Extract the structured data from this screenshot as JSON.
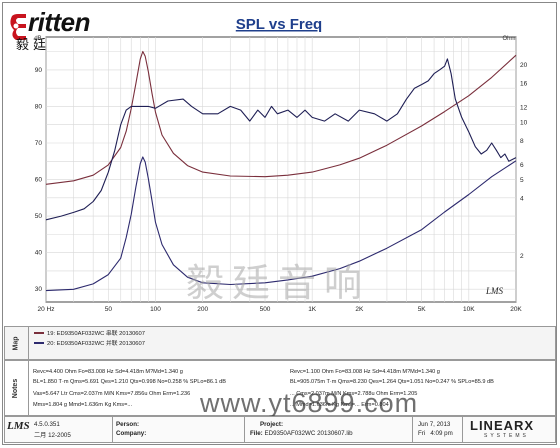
{
  "logo": {
    "brand_text": "ritten",
    "chinese_text": "毅廷音响"
  },
  "chart_data": {
    "type": "line",
    "title": "SPL vs Freq",
    "left_axis": {
      "unit": "dB",
      "ticks": [
        30,
        40,
        50,
        60,
        70,
        80,
        90
      ],
      "lim": [
        26.5,
        99
      ]
    },
    "right_axis": {
      "unit": "Ohm",
      "ticks": [
        2,
        4,
        5,
        6,
        8,
        10,
        12,
        16,
        20
      ],
      "lim": [
        1.15,
        28
      ]
    },
    "x_axis": {
      "scale": "log",
      "ticks": [
        {
          "v": 20,
          "t": "20 Hz"
        },
        {
          "v": 50,
          "t": "50"
        },
        {
          "v": 100,
          "t": "100"
        },
        {
          "v": 200,
          "t": "200"
        },
        {
          "v": 500,
          "t": "500"
        },
        {
          "v": 1000,
          "t": "1K"
        },
        {
          "v": 2000,
          "t": "2K"
        },
        {
          "v": 5000,
          "t": "5K"
        },
        {
          "v": 10000,
          "t": "10K"
        },
        {
          "v": 20000,
          "t": "20K"
        }
      ],
      "lim": [
        20,
        20000
      ]
    },
    "series": [
      {
        "name": "19: ED9350AF032WC 串联 20130607",
        "kind": "impedance",
        "axis": "right",
        "color": "#7a2f3c",
        "points": [
          [
            20,
            4.75
          ],
          [
            30,
            4.95
          ],
          [
            40,
            5.3
          ],
          [
            50,
            6.0
          ],
          [
            60,
            7.4
          ],
          [
            65,
            9.0
          ],
          [
            70,
            11.8
          ],
          [
            75,
            16.0
          ],
          [
            80,
            21.5
          ],
          [
            83,
            23.5
          ],
          [
            86,
            22.2
          ],
          [
            90,
            18.5
          ],
          [
            95,
            14.2
          ],
          [
            100,
            11.3
          ],
          [
            110,
            8.6
          ],
          [
            130,
            6.9
          ],
          [
            160,
            5.95
          ],
          [
            200,
            5.5
          ],
          [
            300,
            5.25
          ],
          [
            500,
            5.2
          ],
          [
            700,
            5.3
          ],
          [
            1000,
            5.5
          ],
          [
            1500,
            6.0
          ],
          [
            2000,
            6.5
          ],
          [
            3000,
            7.6
          ],
          [
            5000,
            9.6
          ],
          [
            7000,
            11.4
          ],
          [
            10000,
            13.8
          ],
          [
            14000,
            17.2
          ],
          [
            20000,
            22.5
          ]
        ]
      },
      {
        "name": "20: ED9350AF032WC 并联 20130607",
        "kind": "impedance",
        "axis": "right",
        "color": "#2d2a6e",
        "points": [
          [
            20,
            1.32
          ],
          [
            30,
            1.34
          ],
          [
            40,
            1.43
          ],
          [
            50,
            1.6
          ],
          [
            60,
            1.95
          ],
          [
            65,
            2.5
          ],
          [
            70,
            3.3
          ],
          [
            75,
            4.6
          ],
          [
            80,
            6.1
          ],
          [
            83,
            6.6
          ],
          [
            86,
            6.2
          ],
          [
            90,
            5.1
          ],
          [
            95,
            3.9
          ],
          [
            100,
            3.0
          ],
          [
            110,
            2.3
          ],
          [
            130,
            1.8
          ],
          [
            160,
            1.55
          ],
          [
            200,
            1.45
          ],
          [
            300,
            1.42
          ],
          [
            500,
            1.45
          ],
          [
            700,
            1.5
          ],
          [
            1000,
            1.57
          ],
          [
            1500,
            1.72
          ],
          [
            2000,
            1.88
          ],
          [
            3000,
            2.2
          ],
          [
            5000,
            2.75
          ],
          [
            7000,
            3.4
          ],
          [
            10000,
            4.2
          ],
          [
            14000,
            5.2
          ],
          [
            20000,
            6.3
          ]
        ]
      },
      {
        "name": "SPL",
        "kind": "spl",
        "axis": "left",
        "color": "#1f1f55",
        "points": [
          [
            20,
            49
          ],
          [
            25,
            50
          ],
          [
            30,
            51
          ],
          [
            35,
            52
          ],
          [
            40,
            54
          ],
          [
            45,
            57
          ],
          [
            50,
            62
          ],
          [
            55,
            68
          ],
          [
            60,
            75
          ],
          [
            65,
            79
          ],
          [
            70,
            80
          ],
          [
            80,
            80
          ],
          [
            90,
            80
          ],
          [
            100,
            79.5
          ],
          [
            120,
            81.5
          ],
          [
            150,
            82
          ],
          [
            170,
            80
          ],
          [
            200,
            78
          ],
          [
            250,
            78
          ],
          [
            300,
            80
          ],
          [
            350,
            79
          ],
          [
            400,
            76
          ],
          [
            450,
            79
          ],
          [
            500,
            77
          ],
          [
            550,
            80
          ],
          [
            600,
            78
          ],
          [
            700,
            79
          ],
          [
            800,
            77
          ],
          [
            900,
            79
          ],
          [
            1000,
            77
          ],
          [
            1200,
            76
          ],
          [
            1400,
            78
          ],
          [
            1700,
            76
          ],
          [
            2000,
            79
          ],
          [
            2500,
            78
          ],
          [
            3000,
            76
          ],
          [
            3500,
            78
          ],
          [
            4000,
            82
          ],
          [
            4500,
            85
          ],
          [
            5000,
            86
          ],
          [
            5500,
            87
          ],
          [
            6000,
            89
          ],
          [
            6500,
            90
          ],
          [
            7000,
            91
          ],
          [
            7300,
            93
          ],
          [
            7700,
            89
          ],
          [
            8200,
            82
          ],
          [
            9000,
            77
          ],
          [
            10000,
            73
          ],
          [
            11000,
            69
          ],
          [
            12000,
            67
          ],
          [
            13000,
            68
          ],
          [
            14000,
            70
          ],
          [
            15000,
            68
          ],
          [
            16000,
            66
          ],
          [
            17000,
            67
          ],
          [
            18000,
            65
          ],
          [
            20000,
            66
          ]
        ]
      }
    ]
  },
  "lms_badge": "LMS",
  "watermark": "毅廷音响",
  "url_watermark": "www.yt6899.com",
  "map_panel": {
    "label": "Map",
    "entries": [
      {
        "text": "19: ED9350AF032WC 串联 20130607",
        "color": "#7a2f3c"
      },
      {
        "text": "20: ED9350AF032WC 并联 20130607",
        "color": "#2d2a6e"
      }
    ]
  },
  "notes_panel": {
    "label": "Notes",
    "left": [
      "Revc=4.400 Ohm Fo=83.008 Hz  Sd=4.418m M?Md=1.340 g",
      "BL=1.850 T·m  Qms=5.691  Qes=1.210  Qts=0.998  No=0.258 %  SPLo=86.1 dB",
      "Vas=5.647 Ltr  Cms=2.037m M/N  Kms=7.856u Ohm  Erm=1.236",
      "Mms=1.804 g  Mmd=1.636m Kg  Kms=..."
    ],
    "right": [
      "Revc=1.100 Ohm Fo=83.008 Hz  Sd=4.418m M?Md=1.340 g",
      "BL=905.075m T·m  Qms=8.230  Qes=1.264  Qts=1.051  No=0.247 %  SPLo=85.9 dB",
      "...  Cms=2.037m M/N  Kms=2.788u Ohm  Erm=1.205",
      "...  Mmd=1.636m Kg  Kms=...  Erm=0.804"
    ]
  },
  "footer": {
    "lms_logo": "LMS",
    "version": "4.5.0.351",
    "build": "二月 12-2005",
    "person_label": "Person:",
    "person_value": "",
    "company_label": "Company:",
    "company_value": "",
    "project_label": "Project:",
    "project_value": "",
    "file_label": "File:",
    "file_value": "ED9350AF032WC 20130607.lib",
    "date": "Jun 7, 2013",
    "time_label": "Fri",
    "time_value": "4:09 pm",
    "brand": "LINEARX",
    "brand_sub": "SYSTEMS"
  }
}
